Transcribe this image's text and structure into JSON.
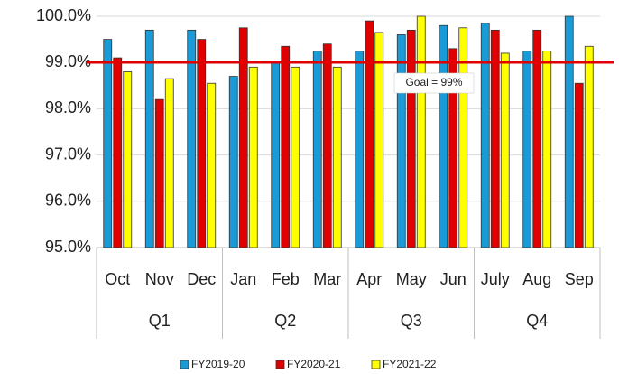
{
  "chart_data": {
    "type": "bar",
    "categories": [
      "Oct",
      "Nov",
      "Dec",
      "Jan",
      "Feb",
      "Mar",
      "Apr",
      "May",
      "Jun",
      "July",
      "Aug",
      "Sep"
    ],
    "quarters": [
      "Q1",
      "Q2",
      "Q3",
      "Q4"
    ],
    "series": [
      {
        "name": "FY2019-20",
        "color": "#1a9ad6",
        "values": [
          99.5,
          99.7,
          99.7,
          98.7,
          99.0,
          99.25,
          99.25,
          99.6,
          99.8,
          99.85,
          99.25,
          100.0
        ]
      },
      {
        "name": "FY2020-21",
        "color": "#e00000",
        "values": [
          99.1,
          98.2,
          99.5,
          99.75,
          99.35,
          99.4,
          99.9,
          99.7,
          99.3,
          99.7,
          99.7,
          98.55
        ]
      },
      {
        "name": "FY2021-22",
        "color": "#ffff00",
        "values": [
          98.8,
          98.65,
          98.55,
          98.9,
          98.9,
          98.9,
          99.65,
          100.0,
          99.75,
          99.2,
          99.25,
          99.35
        ]
      }
    ],
    "goal": {
      "value": 99,
      "label": "Goal = 99%"
    },
    "ylim": [
      95,
      100
    ],
    "yticks": [
      {
        "value": 95,
        "label": "95.0%"
      },
      {
        "value": 96,
        "label": "96.0%"
      },
      {
        "value": 97,
        "label": "97.0%"
      },
      {
        "value": 98,
        "label": "98.0%"
      },
      {
        "value": 99,
        "label": "99.0%"
      },
      {
        "value": 100,
        "label": "100.0%"
      }
    ],
    "grid": true
  }
}
